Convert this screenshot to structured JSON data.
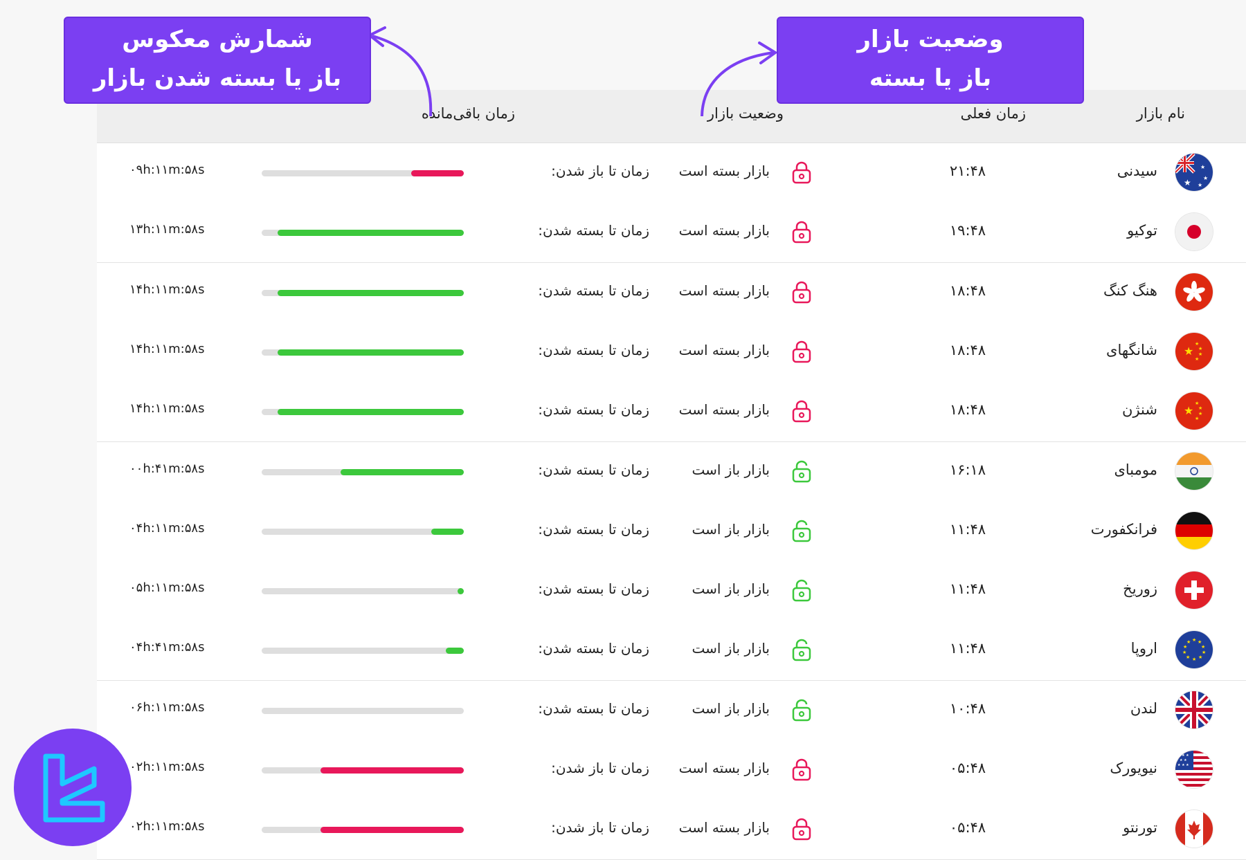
{
  "colors": {
    "accent": "#7b3ff2",
    "open_green": "#3cc83c",
    "closed_red": "#e8185a",
    "header_bg": "#eeeeee"
  },
  "callouts": {
    "left": {
      "line1": "شمارش معکوس",
      "line2": "باز یا بسته شدن بازار"
    },
    "right": {
      "line1": "وضعیت بازار",
      "line2": "باز یا بسته"
    }
  },
  "table": {
    "headers": {
      "name": "نام بازار",
      "time": "زمان فعلی",
      "status": "وضعیت بازار",
      "remaining": "زمان باقی‌مانده"
    },
    "rows": [
      {
        "flag": "australia-flag-icon",
        "name": "سیدنی",
        "time": "۲۱:۴۸",
        "lock": "lock-closed-icon",
        "status": "بازار بسته است",
        "ttl": "زمان تا باز شدن:",
        "progress": 0.26,
        "bar_color": "red",
        "countdown": "۰۹h:۱۱m:۵۸s"
      },
      {
        "flag": "japan-flag-icon",
        "name": "توکیو",
        "time": "۱۹:۴۸",
        "lock": "lock-closed-icon",
        "status": "بازار بسته است",
        "ttl": "زمان تا بسته شدن:",
        "progress": 0.92,
        "bar_color": "green",
        "countdown": "۱۳h:۱۱m:۵۸s"
      },
      {
        "flag": "hongkong-flag-icon",
        "name": "هنگ کنگ",
        "time": "۱۸:۴۸",
        "lock": "lock-closed-icon",
        "status": "بازار بسته است",
        "ttl": "زمان تا بسته شدن:",
        "progress": 0.92,
        "bar_color": "green",
        "countdown": "۱۴h:۱۱m:۵۸s"
      },
      {
        "flag": "china-flag-icon",
        "name": "شانگهای",
        "time": "۱۸:۴۸",
        "lock": "lock-closed-icon",
        "status": "بازار بسته است",
        "ttl": "زمان تا بسته شدن:",
        "progress": 0.92,
        "bar_color": "green",
        "countdown": "۱۴h:۱۱m:۵۸s"
      },
      {
        "flag": "china-flag-icon",
        "name": "شنژن",
        "time": "۱۸:۴۸",
        "lock": "lock-closed-icon",
        "status": "بازار بسته است",
        "ttl": "زمان تا بسته شدن:",
        "progress": 0.92,
        "bar_color": "green",
        "countdown": "۱۴h:۱۱m:۵۸s"
      },
      {
        "flag": "india-flag-icon",
        "name": "مومبای",
        "time": "۱۶:۱۸",
        "lock": "lock-open-icon",
        "status": "بازار باز است",
        "ttl": "زمان تا بسته شدن:",
        "progress": 0.61,
        "bar_color": "green",
        "countdown": "۰۰h:۴۱m:۵۸s"
      },
      {
        "flag": "germany-flag-icon",
        "name": "فرانکفورت",
        "time": "۱۱:۴۸",
        "lock": "lock-open-icon",
        "status": "بازار باز است",
        "ttl": "زمان تا بسته شدن:",
        "progress": 0.16,
        "bar_color": "green",
        "countdown": "۰۴h:۱۱m:۵۸s"
      },
      {
        "flag": "switzerland-flag-icon",
        "name": "زوریخ",
        "time": "۱۱:۴۸",
        "lock": "lock-open-icon",
        "status": "بازار باز است",
        "ttl": "زمان تا بسته شدن:",
        "progress": 0.03,
        "bar_color": "green",
        "countdown": "۰۵h:۱۱m:۵۸s"
      },
      {
        "flag": "eu-flag-icon",
        "name": "اروپا",
        "time": "۱۱:۴۸",
        "lock": "lock-open-icon",
        "status": "بازار باز است",
        "ttl": "زمان تا بسته شدن:",
        "progress": 0.09,
        "bar_color": "green",
        "countdown": "۰۴h:۴۱m:۵۸s"
      },
      {
        "flag": "uk-flag-icon",
        "name": "لندن",
        "time": "۱۰:۴۸",
        "lock": "lock-open-icon",
        "status": "بازار باز است",
        "ttl": "زمان تا بسته شدن:",
        "progress": 0.0,
        "bar_color": "green",
        "countdown": "۰۶h:۱۱m:۵۸s"
      },
      {
        "flag": "usa-flag-icon",
        "name": "نیویورک",
        "time": "۰۵:۴۸",
        "lock": "lock-closed-icon",
        "status": "بازار بسته است",
        "ttl": "زمان تا باز شدن:",
        "progress": 0.71,
        "bar_color": "red",
        "countdown": "۰۲h:۱۱m:۵۸s"
      },
      {
        "flag": "canada-flag-icon",
        "name": "تورنتو",
        "time": "۰۵:۴۸",
        "lock": "lock-closed-icon",
        "status": "بازار بسته است",
        "ttl": "زمان تا باز شدن:",
        "progress": 0.71,
        "bar_color": "red",
        "countdown": "۰۲h:۱۱m:۵۸s"
      }
    ]
  }
}
